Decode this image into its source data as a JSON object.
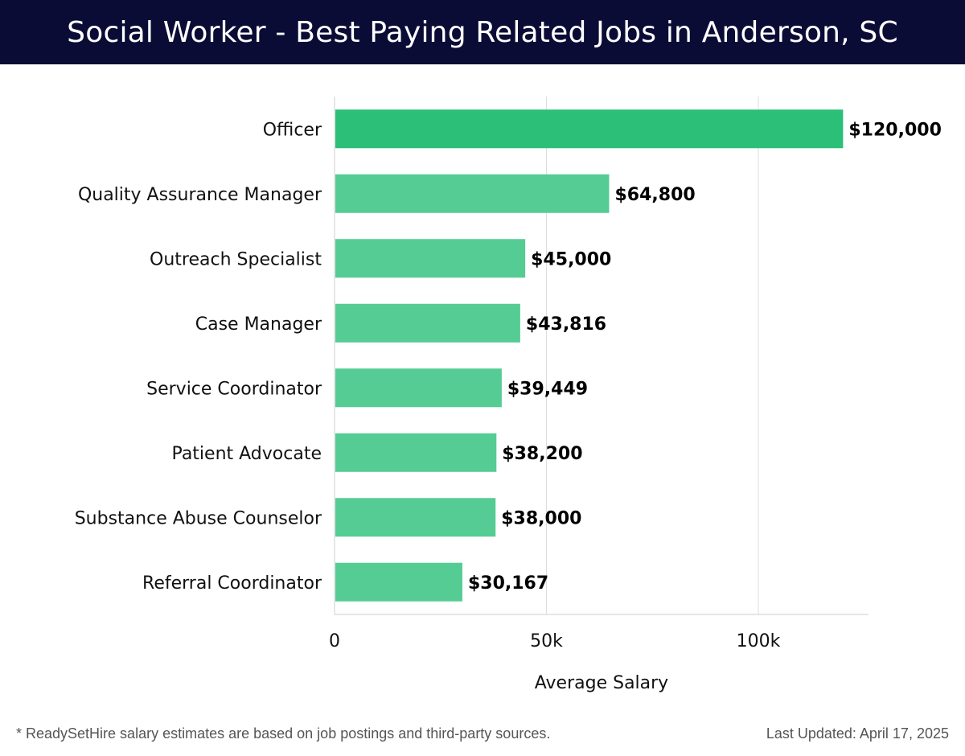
{
  "header": {
    "title": "Social Worker - Best Paying Related Jobs in Anderson, SC"
  },
  "chart_data": {
    "type": "bar",
    "orientation": "horizontal",
    "categories": [
      "Officer",
      "Quality Assurance Manager",
      "Outreach Specialist",
      "Case Manager",
      "Service Coordinator",
      "Patient Advocate",
      "Substance Abuse Counselor",
      "Referral Coordinator"
    ],
    "values": [
      120000,
      64800,
      45000,
      43816,
      39449,
      38200,
      38000,
      30167
    ],
    "value_labels": [
      "$120,000",
      "$64,800",
      "$45,000",
      "$43,816",
      "$39,449",
      "$38,200",
      "$38,000",
      "$30,167"
    ],
    "xlabel": "Average Salary",
    "xlim": [
      0,
      126000
    ],
    "xticks": [
      0,
      50000,
      100000
    ],
    "xtick_labels": [
      "0",
      "50k",
      "100k"
    ],
    "grid": "vertical",
    "colors": {
      "top_bar": "#2bbf78",
      "bar": "#55cc94",
      "grid": "#dddddd",
      "axis": "#cccccc",
      "label": "#111111"
    }
  },
  "footer": {
    "note": "* ReadySetHire salary estimates are based on job postings and third-party sources.",
    "updated": "Last Updated: April 17, 2025"
  }
}
